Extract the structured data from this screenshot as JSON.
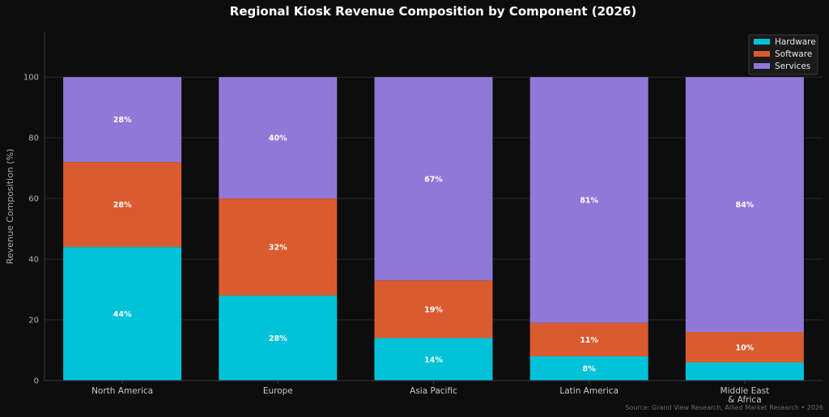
{
  "chart_data": {
    "type": "bar",
    "stacked": true,
    "title": "Regional Kiosk Revenue Composition by Component (2026)",
    "ylabel": "Revenue Composition (%)",
    "xlabel": "",
    "ylim": [
      0,
      115
    ],
    "yticks": [
      0,
      20,
      40,
      60,
      80,
      100
    ],
    "grid": true,
    "legend_position": "top-right",
    "categories": [
      "North America",
      "Europe",
      "Asia Pacific",
      "Latin America",
      "Middle East\n& Africa"
    ],
    "series": [
      {
        "name": "Hardware",
        "color": "#00c2d9",
        "values": [
          44,
          28,
          14,
          8,
          6
        ],
        "labels": [
          "44%",
          "28%",
          "14%",
          "8%",
          ""
        ]
      },
      {
        "name": "Software",
        "color": "#db5b30",
        "values": [
          28,
          32,
          19,
          11,
          10
        ],
        "labels": [
          "28%",
          "32%",
          "19%",
          "11%",
          "10%"
        ]
      },
      {
        "name": "Services",
        "color": "#9078d8",
        "values": [
          28,
          40,
          67,
          81,
          84
        ],
        "labels": [
          "28%",
          "40%",
          "67%",
          "81%",
          "84%"
        ]
      }
    ],
    "source": "Source: Grand View Research, Allied Market Research • 2026"
  }
}
